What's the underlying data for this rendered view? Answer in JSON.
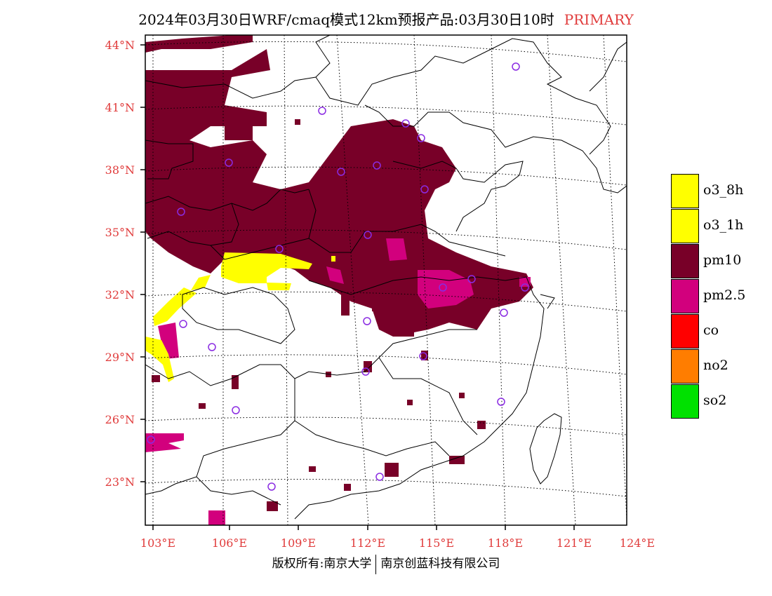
{
  "title": {
    "main": "2024年03月30日WRF/cmaq模式12km预报产品:03月30日10时",
    "tag": "PRIMARY"
  },
  "axes": {
    "lat_labels": [
      "44°N",
      "41°N",
      "38°N",
      "35°N",
      "32°N",
      "29°N",
      "26°N",
      "23°N"
    ],
    "lon_labels": [
      "103°E",
      "106°E",
      "109°E",
      "112°E",
      "115°E",
      "118°E",
      "121°E",
      "124°E"
    ]
  },
  "legend": {
    "items": [
      {
        "label": "o3_8h",
        "color": "#ffff00"
      },
      {
        "label": "o3_1h",
        "color": "#ffff00"
      },
      {
        "label": "pm10",
        "color": "#780028"
      },
      {
        "label": "pm2.5",
        "color": "#d2007d"
      },
      {
        "label": "co",
        "color": "#ff0000"
      },
      {
        "label": "no2",
        "color": "#ff7d00"
      },
      {
        "label": "so2",
        "color": "#00e100"
      }
    ]
  },
  "colors": {
    "label_red": "#e03b3b",
    "station_marker": "#8a2be2"
  },
  "footer": {
    "left": "版权所有:南京大学",
    "right": "南京创蓝科技有限公司"
  }
}
